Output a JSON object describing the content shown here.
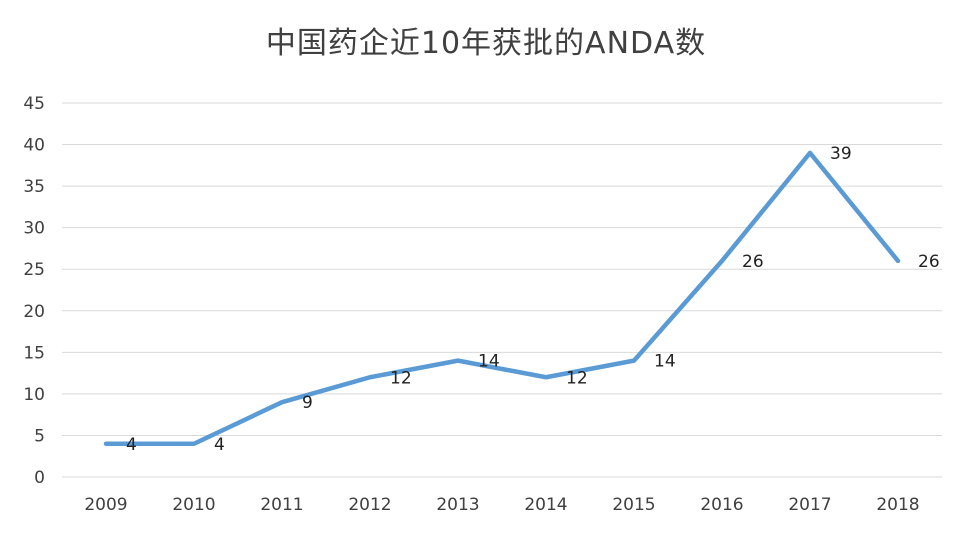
{
  "chart_data": {
    "type": "line",
    "title": "中国药企近10年获批的ANDA数",
    "categories": [
      "2009",
      "2010",
      "2011",
      "2012",
      "2013",
      "2014",
      "2015",
      "2016",
      "2017",
      "2018"
    ],
    "series": [
      {
        "values": [
          4,
          4,
          9,
          12,
          14,
          12,
          14,
          26,
          39,
          26
        ]
      }
    ],
    "data_labels": [
      "4",
      "4",
      "9",
      "12",
      "14",
      "12",
      "14",
      "26",
      "39",
      "26"
    ],
    "ylim": [
      0,
      45
    ],
    "yticks": [
      "0",
      "5",
      "10",
      "15",
      "20",
      "25",
      "30",
      "35",
      "40",
      "45"
    ],
    "xlabel": "",
    "ylabel": "",
    "grid": true,
    "legend": "none",
    "line_color": "#5b9bd5"
  }
}
